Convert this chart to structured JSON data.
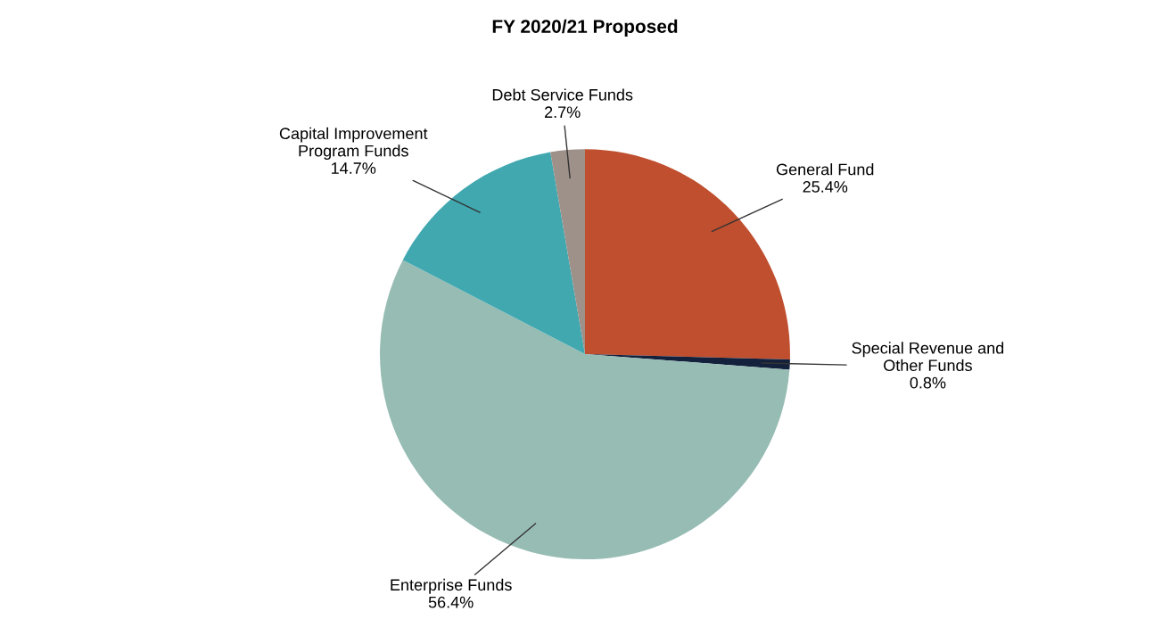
{
  "chart_data": {
    "type": "pie",
    "title": "FY 2020/21 Proposed",
    "categories": [
      "General Fund",
      "Special Revenue and\nOther Funds",
      "Enterprise Funds",
      "Capital Improvement\nProgram Funds",
      "Debt Service Funds"
    ],
    "values": [
      25.4,
      0.8,
      56.4,
      14.7,
      2.7
    ],
    "colors": [
      "#bf4f2f",
      "#14213d",
      "#96bcb4",
      "#41a8b0",
      "#9e9189"
    ],
    "value_labels": [
      "25.4%",
      "0.8%",
      "56.4%",
      "14.7%",
      "2.7%"
    ],
    "legend": false
  }
}
